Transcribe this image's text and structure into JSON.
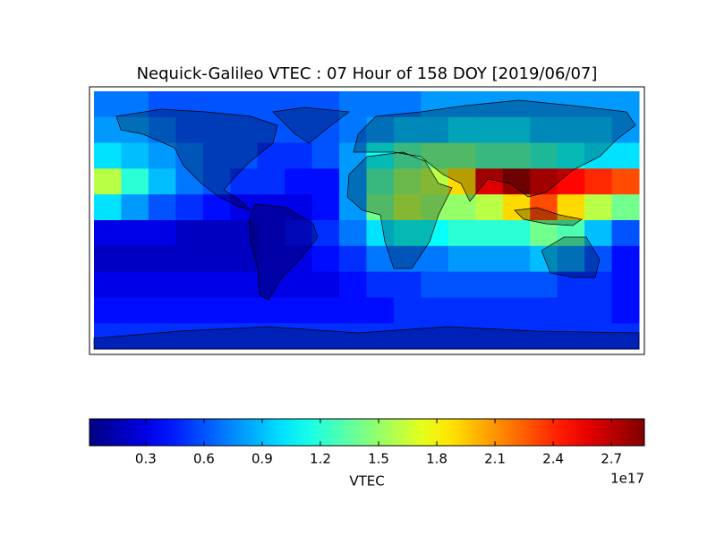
{
  "chart_data": {
    "type": "heatmap",
    "title": "Nequick-Galileo VTEC : 07 Hour of 158 DOY [2019/06/07]",
    "colormap": "jet",
    "xlim": [
      -180,
      180
    ],
    "ylim": [
      -90,
      90
    ],
    "values": [
      [
        0.7,
        0.7,
        0.6,
        0.6,
        0.6,
        0.6,
        0.6,
        0.6,
        0.6,
        0.7,
        0.7,
        0.7,
        0.8,
        0.8,
        0.8,
        0.8,
        0.8,
        0.8,
        0.8,
        0.8
      ],
      [
        0.8,
        0.8,
        0.7,
        0.6,
        0.6,
        0.6,
        0.6,
        0.6,
        0.6,
        0.7,
        0.8,
        0.9,
        0.9,
        1.0,
        1.0,
        1.0,
        0.9,
        0.9,
        0.9,
        0.8
      ],
      [
        1.0,
        0.9,
        0.8,
        0.7,
        0.6,
        0.6,
        0.5,
        0.5,
        0.6,
        0.8,
        1.1,
        1.3,
        1.4,
        1.4,
        1.3,
        1.3,
        1.2,
        1.1,
        1.0,
        1.0
      ],
      [
        1.6,
        1.2,
        0.9,
        0.7,
        0.6,
        0.5,
        0.5,
        0.4,
        0.4,
        0.8,
        1.3,
        1.5,
        1.6,
        1.9,
        2.6,
        2.8,
        2.6,
        2.5,
        2.4,
        2.3
      ],
      [
        1.0,
        0.8,
        0.6,
        0.5,
        0.4,
        0.3,
        0.3,
        0.3,
        0.4,
        0.8,
        1.4,
        1.6,
        1.5,
        1.5,
        1.6,
        1.9,
        2.3,
        1.9,
        1.6,
        1.4
      ],
      [
        0.3,
        0.3,
        0.3,
        0.2,
        0.2,
        0.2,
        0.3,
        0.4,
        0.5,
        0.7,
        1.0,
        1.1,
        1.1,
        1.2,
        1.2,
        1.2,
        1.4,
        1.3,
        0.9,
        0.6
      ],
      [
        0.2,
        0.2,
        0.2,
        0.2,
        0.2,
        0.2,
        0.3,
        0.3,
        0.4,
        0.5,
        0.7,
        0.7,
        0.7,
        0.8,
        0.8,
        0.8,
        0.9,
        0.8,
        0.6,
        0.4
      ],
      [
        0.3,
        0.3,
        0.3,
        0.3,
        0.3,
        0.3,
        0.3,
        0.3,
        0.3,
        0.4,
        0.5,
        0.5,
        0.6,
        0.6,
        0.6,
        0.6,
        0.6,
        0.5,
        0.5,
        0.4
      ],
      [
        0.4,
        0.4,
        0.4,
        0.4,
        0.4,
        0.4,
        0.4,
        0.4,
        0.4,
        0.4,
        0.4,
        0.5,
        0.5,
        0.5,
        0.5,
        0.5,
        0.5,
        0.5,
        0.5,
        0.4
      ],
      [
        0.5,
        0.5,
        0.5,
        0.5,
        0.5,
        0.5,
        0.5,
        0.5,
        0.5,
        0.5,
        0.5,
        0.5,
        0.5,
        0.5,
        0.5,
        0.5,
        0.5,
        0.5,
        0.5,
        0.5
      ]
    ],
    "colorbar": {
      "label": "VTEC",
      "offset_label": "1e17",
      "clim": [
        0.01,
        2.87
      ],
      "ticks": [
        0.3,
        0.6,
        0.9,
        1.2,
        1.5,
        1.8,
        2.1,
        2.4,
        2.7
      ]
    }
  }
}
